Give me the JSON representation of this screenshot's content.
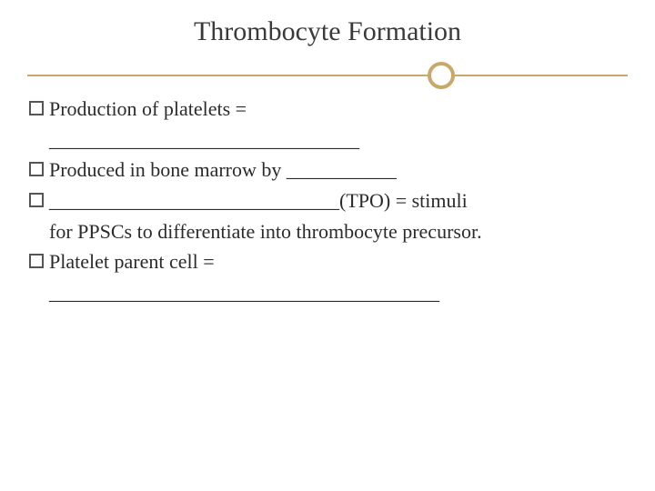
{
  "title": "Thrombocyte Formation",
  "bullets": {
    "b1": "Production of platelets =",
    "b1_blank": "_______________________________",
    "b2": "Produced in bone marrow by ___________",
    "b3": "_____________________________(TPO) = stimuli",
    "b3_cont": "for PPSCs to differentiate into thrombocyte precursor.",
    "b4": "Platelet parent cell =",
    "b4_blank": "_______________________________________"
  },
  "style": {
    "background": "#ffffff",
    "title_color": "#3a3a3a",
    "title_fontsize": 30,
    "body_color": "#2b2b2b",
    "body_fontsize": 22,
    "accent_color": "#c9a96a",
    "ring_border_width": 4,
    "bullet_border_color": "#555555",
    "font_family": "Georgia, Times New Roman, serif"
  }
}
